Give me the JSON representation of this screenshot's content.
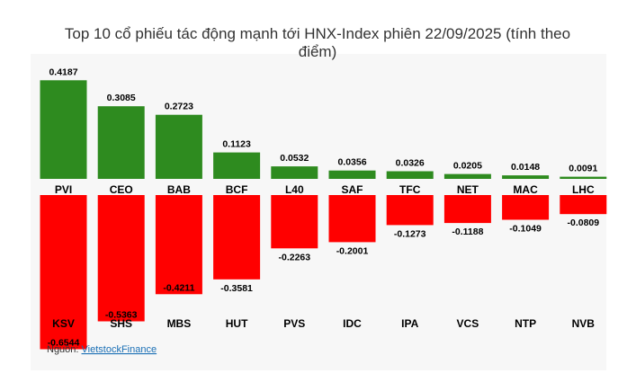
{
  "chart_data": {
    "type": "bar",
    "title": "Top 10 cổ phiếu tác động mạnh tới HNX-Index phiên 22/09/2025 (tính theo điểm)",
    "title_lines": [
      "Top 10 cổ phiếu tác động mạnh tới HNX-Index phiên 22/09/2025 (tính theo",
      "điểm)"
    ],
    "positive": {
      "color": "#2e8b1f",
      "categories": [
        "PVI",
        "CEO",
        "BAB",
        "BCF",
        "L40",
        "SAF",
        "TFC",
        "NET",
        "MAC",
        "LHC"
      ],
      "values": [
        0.4187,
        0.3085,
        0.2723,
        0.1123,
        0.0532,
        0.0356,
        0.0326,
        0.0205,
        0.0148,
        0.0091
      ],
      "labels": [
        "0.4187",
        "0.3085",
        "0.2723",
        "0.1123",
        "0.0532",
        "0.0356",
        "0.0326",
        "0.0205",
        "0.0148",
        "0.0091"
      ]
    },
    "negative": {
      "color": "#ff0000",
      "categories": [
        "KSV",
        "SHS",
        "MBS",
        "HUT",
        "PVS",
        "IDC",
        "IPA",
        "VCS",
        "NTP",
        "NVB"
      ],
      "values": [
        -0.6544,
        -0.5363,
        -0.4211,
        -0.3581,
        -0.2263,
        -0.2001,
        -0.1273,
        -0.1188,
        -0.1049,
        -0.0809
      ],
      "labels": [
        "-0.6544",
        "-0.5363",
        "-0.4211",
        "-0.3581",
        "-0.2263",
        "-0.2001",
        "-0.1273",
        "-0.1188",
        "-0.1049",
        "-0.0809"
      ]
    },
    "background": "#f7f7f7"
  },
  "source": {
    "prefix": "Nguồn: ",
    "link_text": "VietstockFinance"
  }
}
